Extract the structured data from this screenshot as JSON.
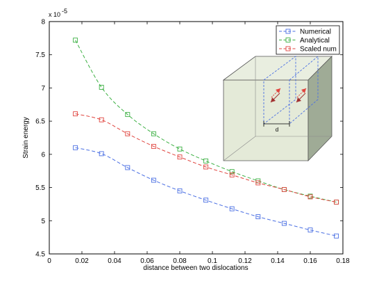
{
  "chart_data": {
    "type": "line",
    "title": "",
    "xlabel": "distance between two dislocations",
    "ylabel": "Strain energy",
    "y_exponent_base": "x 10",
    "y_exponent_power": "-5",
    "xlim": [
      0,
      0.18
    ],
    "ylim": [
      4.5,
      8
    ],
    "xticks": [
      0,
      0.02,
      0.04,
      0.06,
      0.08,
      0.1,
      0.12,
      0.14,
      0.16,
      0.18
    ],
    "xtick_labels": [
      "0",
      "0.02",
      "0.04",
      "0.06",
      "0.08",
      "0.1",
      "0.12",
      "0.14",
      "0.16",
      "0.18"
    ],
    "yticks": [
      4.5,
      5,
      5.5,
      6,
      6.5,
      7,
      7.5,
      8
    ],
    "ytick_labels": [
      "4.5",
      "5",
      "5.5",
      "6",
      "6.5",
      "7",
      "7.5",
      "8"
    ],
    "grid": false,
    "legend_position": "top-right",
    "x": [
      0.016,
      0.032,
      0.048,
      0.064,
      0.08,
      0.096,
      0.112,
      0.128,
      0.144,
      0.16,
      0.176
    ],
    "series": [
      {
        "name": "Numerical",
        "color": "#4a6fe3",
        "marker": "square",
        "line_style": "dashed",
        "values": [
          6.1,
          6.01,
          5.8,
          5.61,
          5.45,
          5.31,
          5.18,
          5.06,
          4.96,
          4.86,
          4.77
        ]
      },
      {
        "name": "Analytical",
        "color": "#3cb043",
        "marker": "square",
        "line_style": "dashed",
        "values": [
          7.72,
          7.01,
          6.6,
          6.31,
          6.08,
          5.9,
          5.74,
          5.6,
          5.47,
          5.37,
          5.28
        ]
      },
      {
        "name": "Scaled num",
        "color": "#e0443e",
        "marker": "square",
        "line_style": "dashed",
        "values": [
          6.61,
          6.52,
          6.31,
          6.12,
          5.96,
          5.81,
          5.69,
          5.57,
          5.47,
          5.36,
          5.28
        ]
      }
    ],
    "inset": {
      "label": "d",
      "box_color": "#e4ead8",
      "side_color": "#9fab96",
      "plane_color": "#4a6fe3",
      "arrow_color": "#e0443e"
    }
  }
}
